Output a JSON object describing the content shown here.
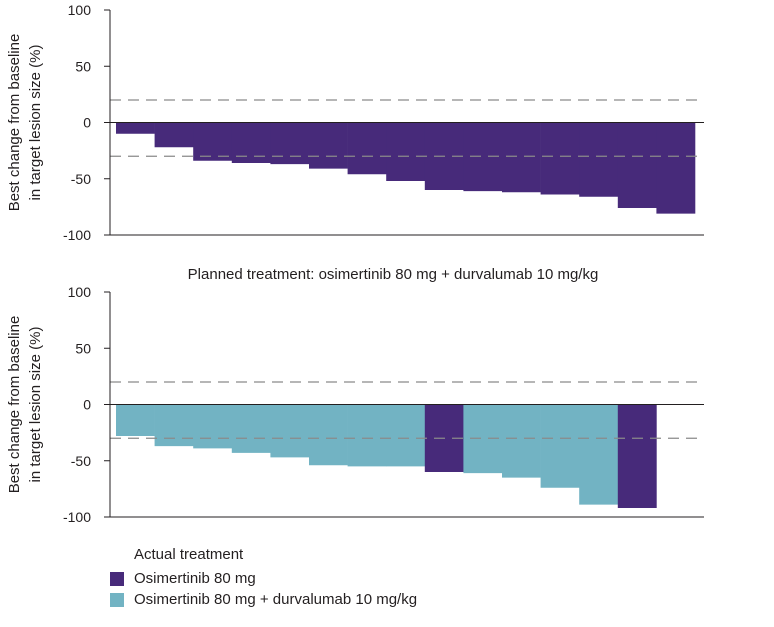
{
  "chart_data": [
    {
      "type": "bar",
      "title": "",
      "ylabel_lines": [
        "Best change from baseline",
        "in target lesion size (%)"
      ],
      "ylim": [
        -100,
        100
      ],
      "yticks": [
        100,
        50,
        0,
        -50,
        -100
      ],
      "reference_lines": [
        20,
        -30
      ],
      "values": [
        -10,
        -22,
        -34,
        -36,
        -37,
        -41,
        -46,
        -52,
        -60,
        -61,
        -62,
        -64,
        -66,
        -76,
        -81
      ],
      "treatments": [
        "osi",
        "osi",
        "osi",
        "osi",
        "osi",
        "osi",
        "osi",
        "osi",
        "osi",
        "osi",
        "osi",
        "osi",
        "osi",
        "osi",
        "osi"
      ]
    },
    {
      "type": "bar",
      "title": "Planned treatment: osimertinib 80 mg + durvalumab 10 mg/kg",
      "ylabel_lines": [
        "Best change from baseline",
        "in target lesion size (%)"
      ],
      "ylim": [
        -100,
        100
      ],
      "yticks": [
        100,
        50,
        0,
        -50,
        -100
      ],
      "reference_lines": [
        20,
        -30
      ],
      "values": [
        -28,
        -37,
        -39,
        -43,
        -47,
        -54,
        -55,
        -55,
        -60,
        -61,
        -65,
        -74,
        -89,
        -92
      ],
      "treatments": [
        "combo",
        "combo",
        "combo",
        "combo",
        "combo",
        "combo",
        "combo",
        "combo",
        "osi",
        "combo",
        "combo",
        "combo",
        "combo",
        "osi"
      ]
    }
  ],
  "legend": {
    "title": "Actual treatment",
    "items": [
      {
        "key": "osi",
        "label": "Osimertinib 80 mg",
        "color": "#472a7a"
      },
      {
        "key": "combo",
        "label": "Osimertinib 80 mg + durvalumab 10 mg/kg",
        "color": "#72b3c3"
      }
    ]
  },
  "colors": {
    "osi": "#472a7a",
    "combo": "#72b3c3",
    "axis": "#231f20",
    "reference_line": "#8a8a8a"
  }
}
